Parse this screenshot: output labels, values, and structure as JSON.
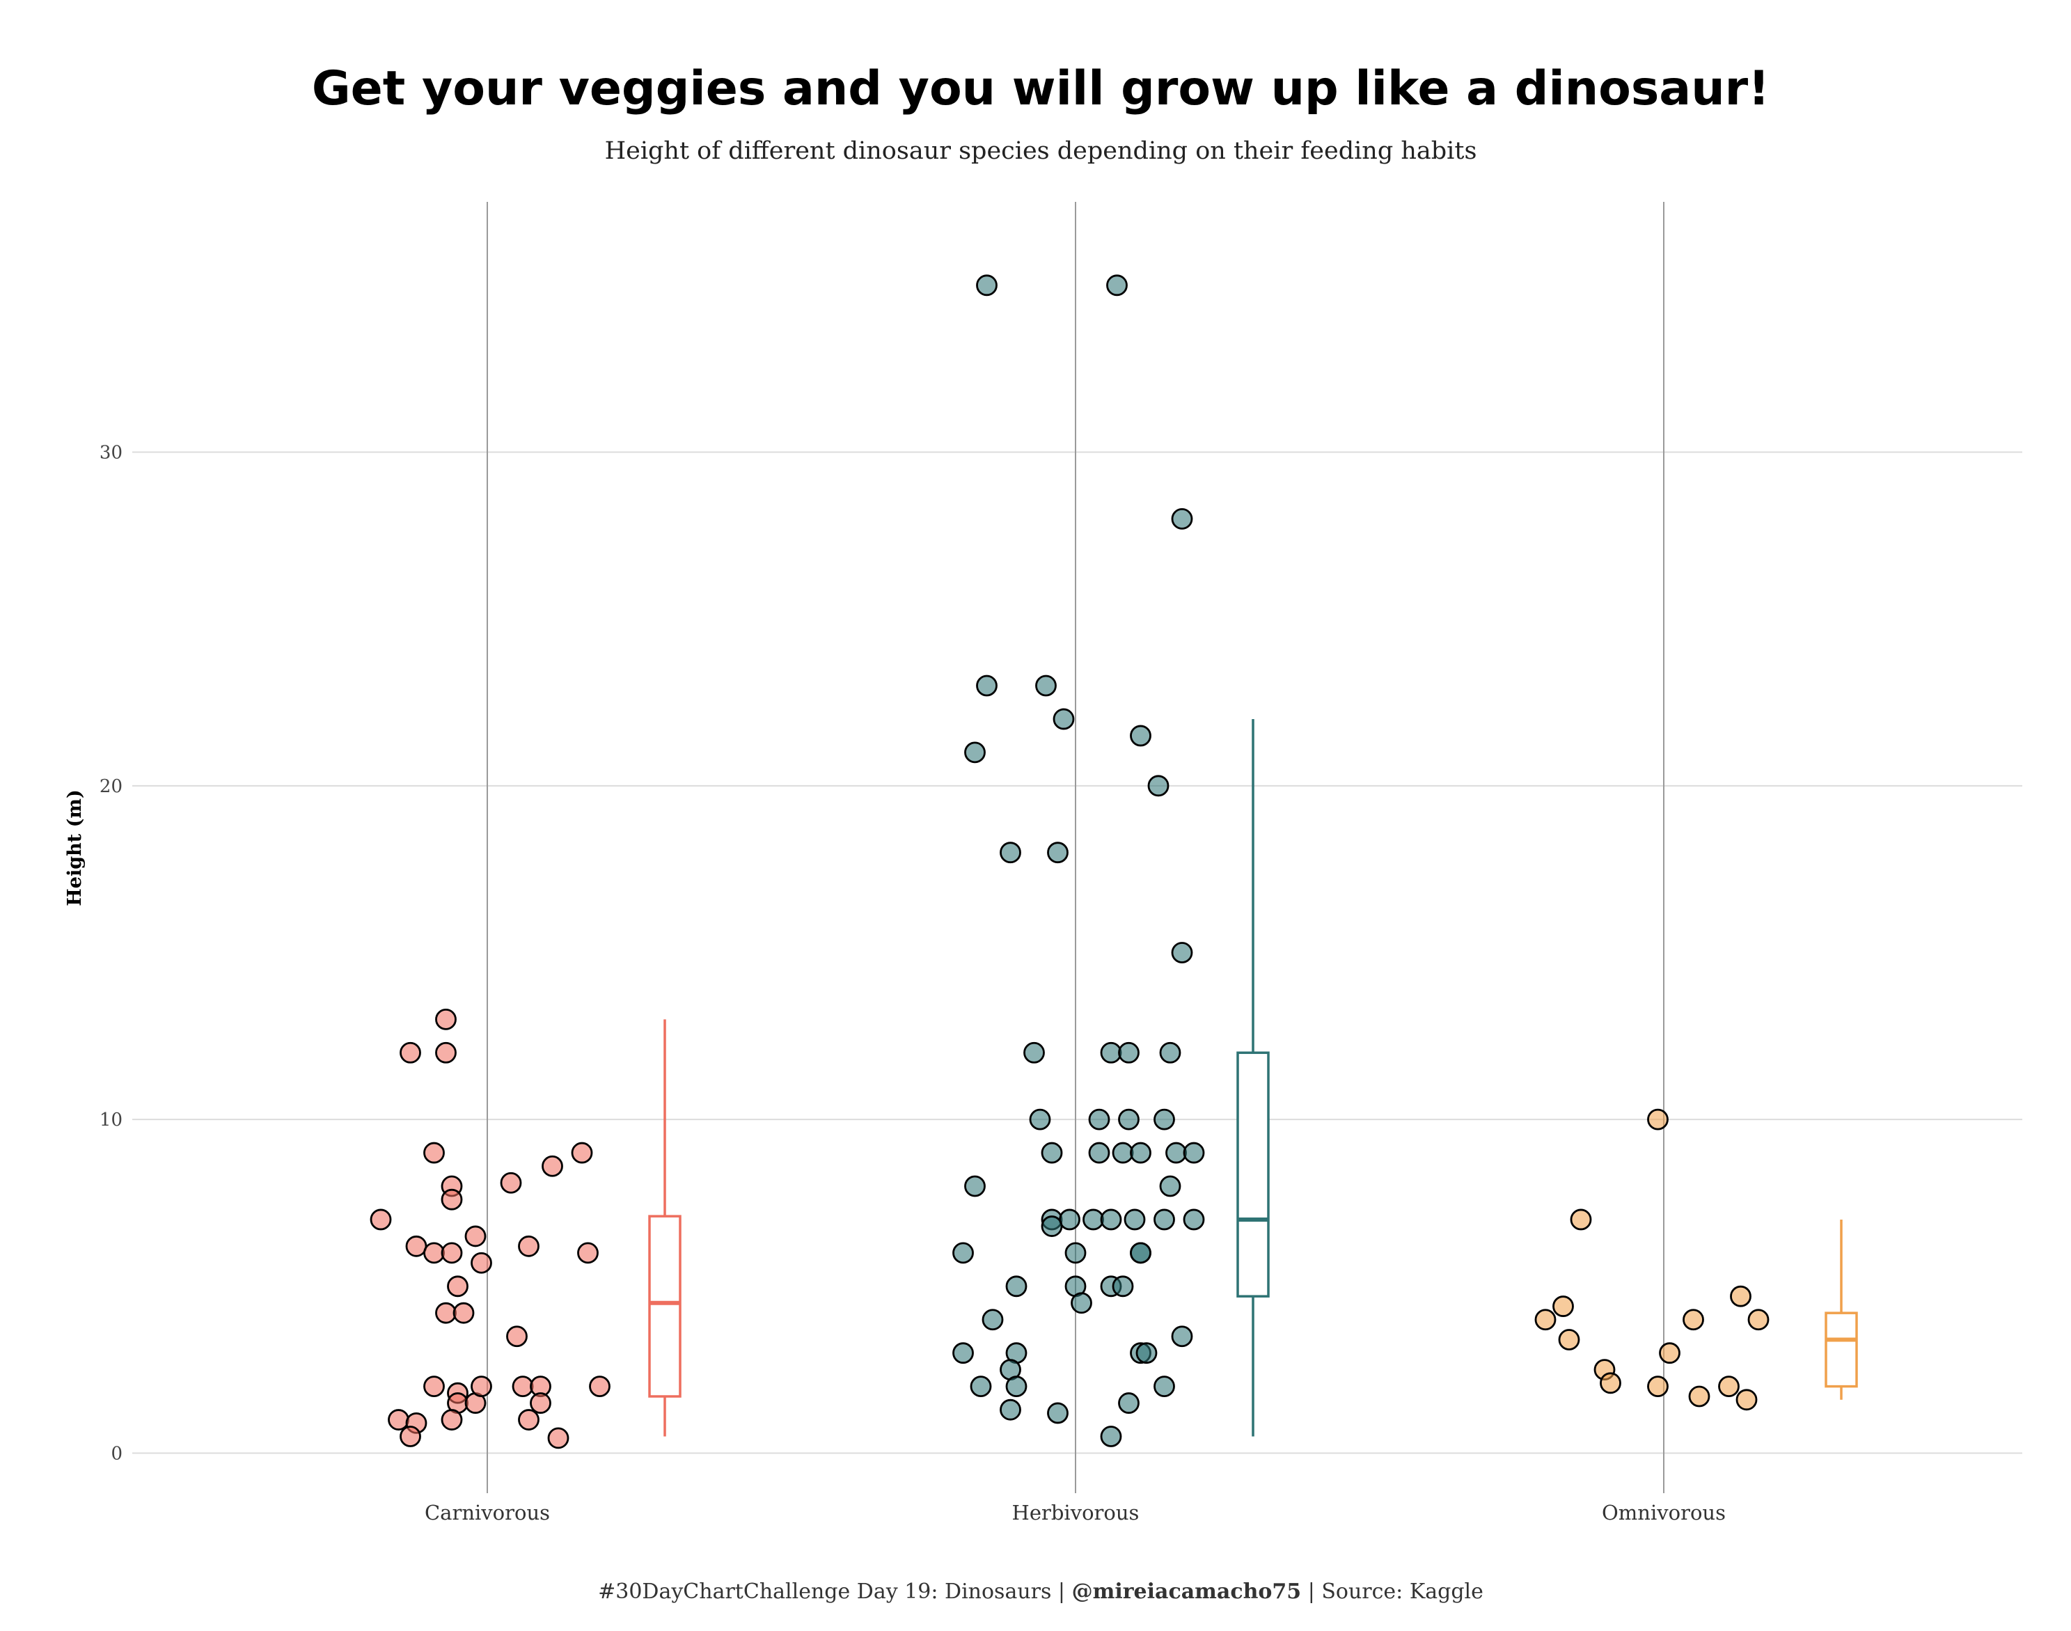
{
  "chart_data": {
    "type": "scatter",
    "title": "Get your veggies and you will grow up like a dinosaur!",
    "subtitle": "Height of different dinosaur species depending on their feeding habits",
    "ylabel": "Height (m)",
    "xlabel": "",
    "ylim": [
      -1.2,
      37.5
    ],
    "yticks": [
      0,
      10,
      20,
      30
    ],
    "grid": true,
    "legend": "none",
    "categories": [
      "Carnivorous",
      "Herbivorous",
      "Omnivorous"
    ],
    "colors": {
      "Carnivorous": "#EE6E5E",
      "Herbivorous": "#2E7374",
      "Omnivorous": "#F0A04B"
    },
    "series": [
      {
        "category": "Carnivorous",
        "points": [
          {
            "jitter": -0.18,
            "y": 7
          },
          {
            "jitter": -0.12,
            "y": 6.2
          },
          {
            "jitter": -0.09,
            "y": 6
          },
          {
            "jitter": -0.06,
            "y": 6
          },
          {
            "jitter": -0.02,
            "y": 6.5
          },
          {
            "jitter": -0.01,
            "y": 5.7
          },
          {
            "jitter": 0.07,
            "y": 6.2
          },
          {
            "jitter": 0.17,
            "y": 6
          },
          {
            "jitter": -0.13,
            "y": 12
          },
          {
            "jitter": -0.07,
            "y": 12
          },
          {
            "jitter": -0.07,
            "y": 13
          },
          {
            "jitter": -0.09,
            "y": 9
          },
          {
            "jitter": -0.06,
            "y": 8
          },
          {
            "jitter": -0.06,
            "y": 7.6
          },
          {
            "jitter": 0.04,
            "y": 8.1
          },
          {
            "jitter": 0.11,
            "y": 8.6
          },
          {
            "jitter": 0.16,
            "y": 9
          },
          {
            "jitter": -0.05,
            "y": 5
          },
          {
            "jitter": -0.07,
            "y": 4.2
          },
          {
            "jitter": -0.04,
            "y": 4.2
          },
          {
            "jitter": 0.05,
            "y": 3.5
          },
          {
            "jitter": -0.09,
            "y": 2
          },
          {
            "jitter": -0.05,
            "y": 1.8
          },
          {
            "jitter": -0.05,
            "y": 1.5
          },
          {
            "jitter": -0.02,
            "y": 1.5
          },
          {
            "jitter": -0.01,
            "y": 2
          },
          {
            "jitter": 0.06,
            "y": 2
          },
          {
            "jitter": 0.09,
            "y": 2
          },
          {
            "jitter": 0.09,
            "y": 1.5
          },
          {
            "jitter": 0.07,
            "y": 1
          },
          {
            "jitter": -0.15,
            "y": 1
          },
          {
            "jitter": -0.12,
            "y": 0.9
          },
          {
            "jitter": -0.13,
            "y": 0.5
          },
          {
            "jitter": -0.06,
            "y": 1
          },
          {
            "jitter": 0.12,
            "y": 0.45
          },
          {
            "jitter": 0.19,
            "y": 2
          }
        ],
        "box": {
          "min": 0.5,
          "q1": 1.7,
          "median": 4.5,
          "q3": 7.1,
          "max": 13
        }
      },
      {
        "category": "Herbivorous",
        "points": [
          {
            "jitter": -0.15,
            "y": 35
          },
          {
            "jitter": 0.07,
            "y": 35
          },
          {
            "jitter": 0.18,
            "y": 28
          },
          {
            "jitter": -0.15,
            "y": 23
          },
          {
            "jitter": -0.05,
            "y": 23
          },
          {
            "jitter": -0.02,
            "y": 22
          },
          {
            "jitter": -0.17,
            "y": 21
          },
          {
            "jitter": 0.11,
            "y": 21.5
          },
          {
            "jitter": 0.14,
            "y": 20
          },
          {
            "jitter": -0.11,
            "y": 18
          },
          {
            "jitter": -0.03,
            "y": 18
          },
          {
            "jitter": 0.18,
            "y": 15
          },
          {
            "jitter": -0.07,
            "y": 12
          },
          {
            "jitter": 0.06,
            "y": 12
          },
          {
            "jitter": 0.09,
            "y": 12
          },
          {
            "jitter": 0.16,
            "y": 12
          },
          {
            "jitter": -0.06,
            "y": 10
          },
          {
            "jitter": 0.04,
            "y": 10
          },
          {
            "jitter": 0.09,
            "y": 10
          },
          {
            "jitter": 0.15,
            "y": 10
          },
          {
            "jitter": -0.04,
            "y": 9
          },
          {
            "jitter": 0.04,
            "y": 9
          },
          {
            "jitter": 0.08,
            "y": 9
          },
          {
            "jitter": 0.11,
            "y": 9
          },
          {
            "jitter": 0.17,
            "y": 9
          },
          {
            "jitter": 0.2,
            "y": 9
          },
          {
            "jitter": -0.17,
            "y": 8
          },
          {
            "jitter": 0.16,
            "y": 8
          },
          {
            "jitter": -0.04,
            "y": 7
          },
          {
            "jitter": -0.01,
            "y": 7
          },
          {
            "jitter": 0.03,
            "y": 7
          },
          {
            "jitter": 0.06,
            "y": 7
          },
          {
            "jitter": 0.1,
            "y": 7
          },
          {
            "jitter": 0.15,
            "y": 7
          },
          {
            "jitter": 0.2,
            "y": 7
          },
          {
            "jitter": -0.04,
            "y": 6.8
          },
          {
            "jitter": -0.19,
            "y": 6
          },
          {
            "jitter": 0.0,
            "y": 6
          },
          {
            "jitter": 0.11,
            "y": 6
          },
          {
            "jitter": 0.11,
            "y": 6
          },
          {
            "jitter": -0.1,
            "y": 5
          },
          {
            "jitter": 0.0,
            "y": 5
          },
          {
            "jitter": 0.06,
            "y": 5
          },
          {
            "jitter": 0.08,
            "y": 5
          },
          {
            "jitter": 0.01,
            "y": 4.5
          },
          {
            "jitter": -0.14,
            "y": 4
          },
          {
            "jitter": 0.18,
            "y": 3.5
          },
          {
            "jitter": -0.19,
            "y": 3
          },
          {
            "jitter": -0.1,
            "y": 3
          },
          {
            "jitter": 0.11,
            "y": 3
          },
          {
            "jitter": 0.12,
            "y": 3
          },
          {
            "jitter": -0.11,
            "y": 2.5
          },
          {
            "jitter": -0.16,
            "y": 2
          },
          {
            "jitter": -0.1,
            "y": 2
          },
          {
            "jitter": 0.15,
            "y": 2
          },
          {
            "jitter": 0.09,
            "y": 1.5
          },
          {
            "jitter": -0.11,
            "y": 1.3
          },
          {
            "jitter": -0.03,
            "y": 1.2
          },
          {
            "jitter": 0.06,
            "y": 0.5
          }
        ],
        "box": {
          "min": 0.5,
          "q1": 4.7,
          "median": 7,
          "q3": 12,
          "max": 22
        }
      },
      {
        "category": "Omnivorous",
        "points": [
          {
            "jitter": -0.01,
            "y": 10
          },
          {
            "jitter": -0.14,
            "y": 7
          },
          {
            "jitter": -0.17,
            "y": 4.4
          },
          {
            "jitter": -0.2,
            "y": 4
          },
          {
            "jitter": -0.16,
            "y": 3.4
          },
          {
            "jitter": 0.05,
            "y": 4
          },
          {
            "jitter": 0.13,
            "y": 4.7
          },
          {
            "jitter": 0.16,
            "y": 4
          },
          {
            "jitter": 0.01,
            "y": 3
          },
          {
            "jitter": -0.1,
            "y": 2.5
          },
          {
            "jitter": -0.09,
            "y": 2.1
          },
          {
            "jitter": -0.01,
            "y": 2
          },
          {
            "jitter": 0.06,
            "y": 1.7
          },
          {
            "jitter": 0.11,
            "y": 2
          },
          {
            "jitter": 0.14,
            "y": 1.6
          }
        ],
        "box": {
          "min": 1.6,
          "q1": 2,
          "median": 3.4,
          "q3": 4.2,
          "max": 7
        }
      }
    ]
  },
  "caption": {
    "prefix": "#30DayChartChallenge Day 19: Dinosaurs | ",
    "handle": "@mireiacamacho75",
    "suffix": " | Source: Kaggle"
  }
}
